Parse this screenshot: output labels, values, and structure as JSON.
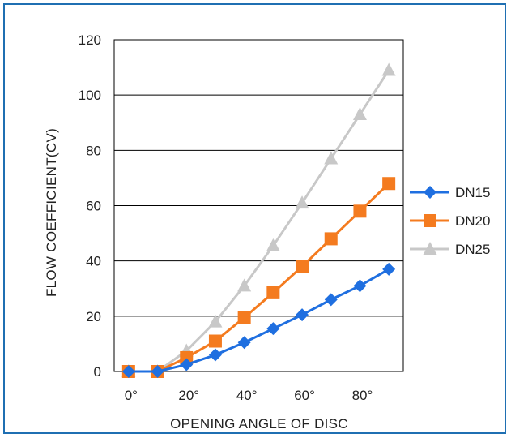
{
  "chart_data": {
    "type": "line",
    "title": "",
    "xlabel": "OPENING ANGLE OF DISC",
    "ylabel": "FLOW COEFFICIENT(CV)",
    "ylim": [
      0,
      120
    ],
    "y_ticks": [
      "0",
      "20",
      "40",
      "60",
      "80",
      "100",
      "120"
    ],
    "x_ticks": [
      "0°",
      "20°",
      "40°",
      "60°",
      "80°"
    ],
    "grid": "horizontal",
    "legend_position": "right",
    "x": [
      0,
      10,
      20,
      30,
      40,
      50,
      60,
      70,
      80,
      90
    ],
    "series": [
      {
        "name": "DN15",
        "marker": "diamond",
        "color": "#1f6fe0",
        "values": [
          0,
          0,
          2.5,
          6,
          10.5,
          15.5,
          20.5,
          26,
          31,
          37
        ]
      },
      {
        "name": "DN20",
        "marker": "square",
        "color": "#f47b1f",
        "values": [
          0,
          0,
          5,
          11,
          19.5,
          28.5,
          38,
          48,
          58,
          68
        ]
      },
      {
        "name": "DN25",
        "marker": "triangle",
        "color": "#c8c8c8",
        "values": [
          0,
          0,
          7.5,
          18,
          31,
          45.5,
          61,
          77,
          93,
          109
        ]
      }
    ]
  }
}
